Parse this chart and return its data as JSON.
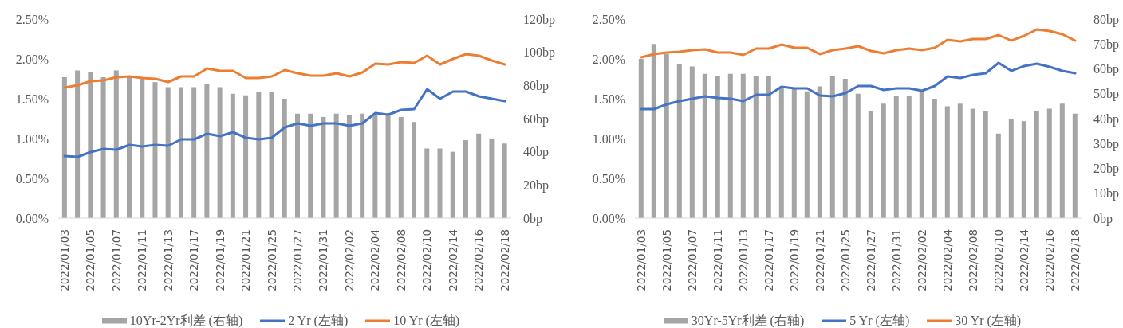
{
  "chart_data": [
    {
      "type": "bar",
      "categories": [
        "2022/01/03",
        null,
        "2022/01/05",
        null,
        "2022/01/07",
        null,
        "2022/01/11",
        null,
        "2022/01/13",
        null,
        "2022/01/17",
        null,
        "2022/01/19",
        null,
        "2022/01/21",
        null,
        "2022/01/25",
        null,
        "2022/01/27",
        null,
        "2022/01/31",
        null,
        "2022/02/02",
        null,
        "2022/02/04",
        null,
        "2022/02/08",
        null,
        "2022/02/10",
        null,
        "2022/02/14",
        null,
        "2022/02/16",
        null,
        "2022/02/18"
      ],
      "series": [
        {
          "name": "10Yr-2Yr利差 (右轴)",
          "axis": "y2",
          "color": "#a5a5a5",
          "values": [
            85,
            89,
            88,
            85,
            89,
            85,
            84,
            82,
            79,
            79,
            79,
            81,
            79,
            75,
            74,
            76,
            76,
            72,
            63,
            63,
            61,
            63,
            62,
            63,
            62,
            62,
            61,
            58,
            42,
            42,
            40,
            47,
            51,
            48,
            45
          ]
        },
        {
          "name": "2 Yr (左轴)",
          "type": "line",
          "color": "#4472c4",
          "values": [
            0.78,
            0.77,
            0.83,
            0.87,
            0.86,
            0.92,
            0.9,
            0.92,
            0.91,
            0.99,
            0.99,
            1.06,
            1.03,
            1.08,
            1.01,
            0.99,
            1.01,
            1.14,
            1.19,
            1.16,
            1.19,
            1.19,
            1.16,
            1.19,
            1.32,
            1.3,
            1.36,
            1.37,
            1.62,
            1.5,
            1.59,
            1.59,
            1.53,
            1.5,
            1.47
          ]
        },
        {
          "name": "10 Yr (左轴)",
          "type": "line",
          "color": "#ed7d31",
          "values": [
            1.64,
            1.67,
            1.72,
            1.73,
            1.77,
            1.78,
            1.76,
            1.75,
            1.71,
            1.78,
            1.78,
            1.88,
            1.85,
            1.85,
            1.76,
            1.76,
            1.78,
            1.86,
            1.82,
            1.79,
            1.79,
            1.82,
            1.78,
            1.83,
            1.94,
            1.93,
            1.96,
            1.95,
            2.04,
            1.93,
            2.0,
            2.06,
            2.04,
            1.98,
            1.93
          ]
        }
      ],
      "ylim": [
        0,
        2.5
      ],
      "yticks": [
        {
          "value": 0,
          "label": "0.00%"
        },
        {
          "value": 0.5,
          "label": "0.50%"
        },
        {
          "value": 1,
          "label": "1.00%"
        },
        {
          "value": 1.5,
          "label": "1.50%"
        },
        {
          "value": 2,
          "label": "2.00%"
        },
        {
          "value": 2.5,
          "label": "2.50%"
        }
      ],
      "y2lim": [
        0,
        120
      ],
      "y2ticks": [
        {
          "value": 0,
          "label": "0bp"
        },
        {
          "value": 20,
          "label": "20bp"
        },
        {
          "value": 40,
          "label": "40bp"
        },
        {
          "value": 60,
          "label": "60bp"
        },
        {
          "value": 80,
          "label": "80bp"
        },
        {
          "value": 100,
          "label": "100bp"
        },
        {
          "value": 120,
          "label": "120bp"
        }
      ],
      "legend": "bottom"
    },
    {
      "type": "bar",
      "categories": [
        "2022/01/03",
        null,
        "2022/01/05",
        null,
        "2022/01/07",
        null,
        "2022/01/11",
        null,
        "2022/01/13",
        null,
        "2022/01/17",
        null,
        "2022/01/19",
        null,
        "2022/01/21",
        null,
        "2022/01/25",
        null,
        "2022/01/27",
        null,
        "2022/01/31",
        null,
        "2022/02/02",
        null,
        "2022/02/04",
        null,
        "2022/02/08",
        null,
        "2022/02/10",
        null,
        "2022/02/14",
        null,
        "2022/02/16",
        null,
        "2022/02/18"
      ],
      "series": [
        {
          "name": "30Yr-5Yr利差 (右轴)",
          "axis": "y2",
          "color": "#a5a5a5",
          "values": [
            64,
            70,
            66,
            62,
            61,
            58,
            57,
            58,
            58,
            57,
            57,
            53,
            52,
            51,
            53,
            57,
            56,
            50,
            43,
            46,
            49,
            49,
            51,
            48,
            45,
            46,
            44,
            43,
            34,
            40,
            39,
            43,
            44,
            46,
            42
          ]
        },
        {
          "name": "5 Yr (左轴)",
          "type": "line",
          "color": "#4472c4",
          "values": [
            1.37,
            1.37,
            1.43,
            1.47,
            1.5,
            1.53,
            1.51,
            1.5,
            1.47,
            1.55,
            1.55,
            1.65,
            1.63,
            1.63,
            1.54,
            1.53,
            1.57,
            1.66,
            1.66,
            1.61,
            1.63,
            1.63,
            1.6,
            1.66,
            1.78,
            1.76,
            1.8,
            1.82,
            1.95,
            1.85,
            1.91,
            1.94,
            1.9,
            1.85,
            1.82
          ]
        },
        {
          "name": "30 Yr (左轴)",
          "type": "line",
          "color": "#ed7d31",
          "values": [
            2.02,
            2.06,
            2.08,
            2.09,
            2.11,
            2.12,
            2.08,
            2.08,
            2.05,
            2.13,
            2.13,
            2.18,
            2.14,
            2.14,
            2.06,
            2.11,
            2.13,
            2.16,
            2.1,
            2.07,
            2.11,
            2.13,
            2.11,
            2.14,
            2.24,
            2.22,
            2.25,
            2.25,
            2.3,
            2.23,
            2.29,
            2.37,
            2.35,
            2.31,
            2.23
          ]
        }
      ],
      "ylim": [
        0,
        2.5
      ],
      "yticks": [
        {
          "value": 0,
          "label": "0.00%"
        },
        {
          "value": 0.5,
          "label": "0.50%"
        },
        {
          "value": 1,
          "label": "1.00%"
        },
        {
          "value": 1.5,
          "label": "1.50%"
        },
        {
          "value": 2,
          "label": "2.00%"
        },
        {
          "value": 2.5,
          "label": "2.50%"
        }
      ],
      "y2lim": [
        0,
        80
      ],
      "y2ticks": [
        {
          "value": 0,
          "label": "0bp"
        },
        {
          "value": 10,
          "label": "10bp"
        },
        {
          "value": 20,
          "label": "20bp"
        },
        {
          "value": 30,
          "label": "30bp"
        },
        {
          "value": 40,
          "label": "40bp"
        },
        {
          "value": 50,
          "label": "50bp"
        },
        {
          "value": 60,
          "label": "60bp"
        },
        {
          "value": 70,
          "label": "70bp"
        },
        {
          "value": 80,
          "label": "80bp"
        }
      ],
      "legend": "bottom"
    }
  ]
}
